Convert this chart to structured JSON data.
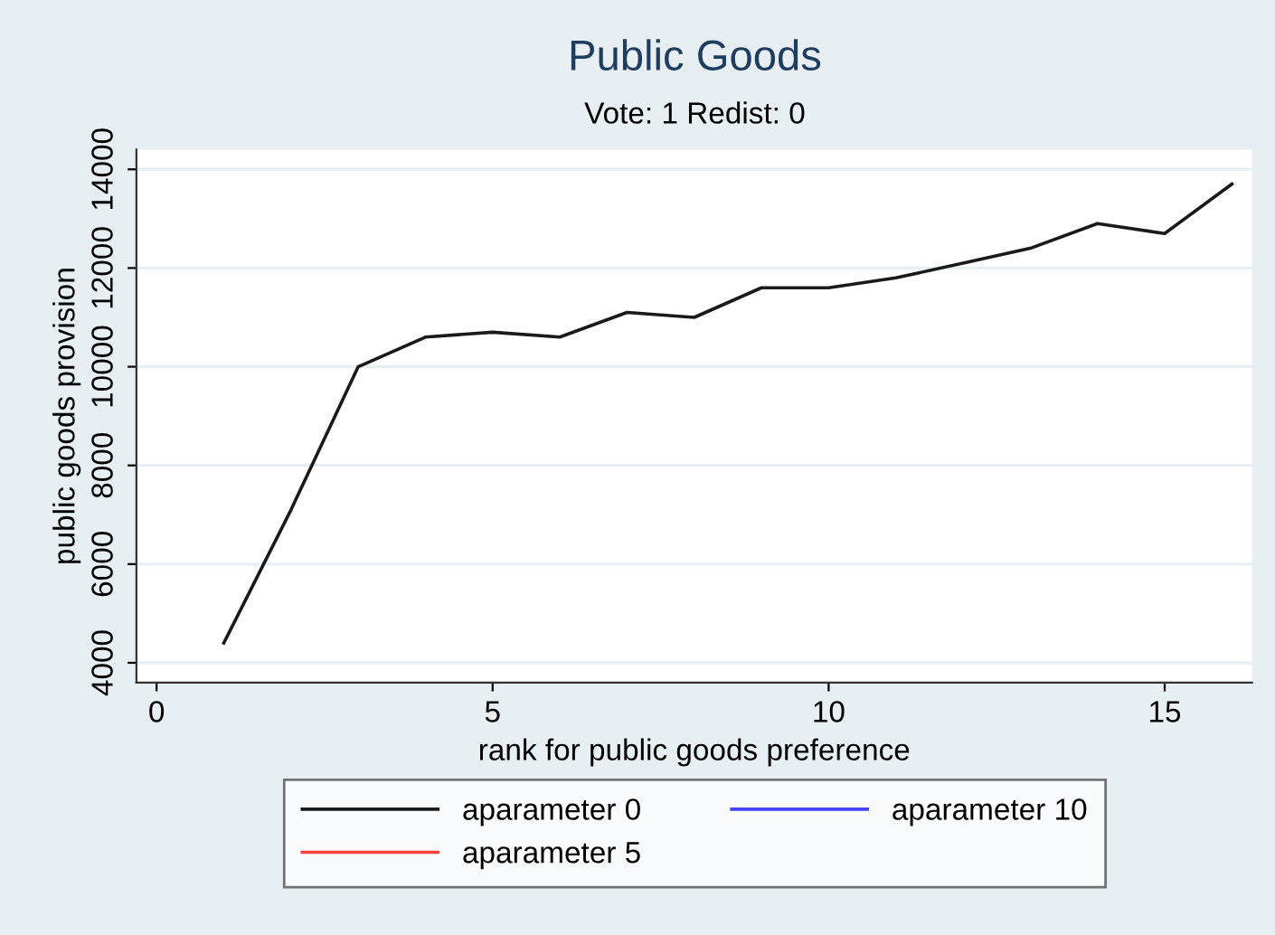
{
  "chart_data": {
    "type": "line",
    "title": "Public Goods",
    "subtitle": "Vote: 1 Redist: 0",
    "xlabel": "rank for public goods preference",
    "ylabel": "public goods provision",
    "x": [
      1,
      2,
      3,
      4,
      5,
      6,
      7,
      8,
      9,
      10,
      11,
      12,
      13,
      14,
      15,
      16
    ],
    "series": [
      {
        "name": "aparameter 0",
        "color": "#1a1a1a",
        "values": [
          4400,
          7100,
          10000,
          10600,
          10700,
          10600,
          11100,
          11000,
          11600,
          11600,
          11800,
          12100,
          12400,
          12900,
          12700,
          13700
        ]
      },
      {
        "name": "aparameter 5",
        "color": "#ff4040",
        "values": [
          null,
          null,
          null,
          null,
          null,
          null,
          null,
          null,
          null,
          null,
          null,
          null,
          null,
          null,
          null,
          null
        ]
      },
      {
        "name": "aparameter 10",
        "color": "#4444ff",
        "values": [
          null,
          null,
          null,
          null,
          null,
          null,
          null,
          null,
          null,
          null,
          null,
          null,
          null,
          null,
          null,
          null
        ]
      }
    ],
    "xlim": [
      -0.3,
      16.3
    ],
    "ylim": [
      3600,
      14400
    ],
    "xticks": [
      0,
      5,
      10,
      15
    ],
    "yticks": [
      4000,
      6000,
      8000,
      10000,
      12000,
      14000
    ],
    "grid": "y",
    "legend": "bottom",
    "marker": "none",
    "line_style": "solid"
  }
}
